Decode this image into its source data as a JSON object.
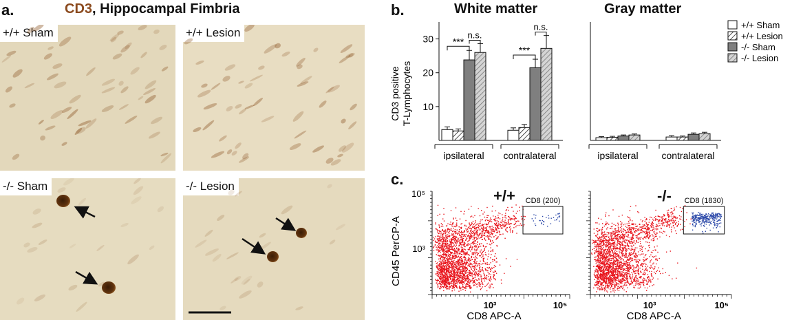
{
  "panel_a": {
    "letter": "a.",
    "title_marker": "CD3",
    "title_rest": ", Hippocampal Fimbria",
    "images": [
      {
        "label": "+/+ Sham"
      },
      {
        "label": "+/+ Lesion"
      },
      {
        "label": "-/- Sham"
      },
      {
        "label": "-/- Lesion"
      }
    ]
  },
  "panel_b": {
    "letter": "b."
  },
  "panel_c": {
    "letter": "c."
  },
  "colors": {
    "red_population": "#e8141c",
    "cd8_population": "#2a47a8",
    "cd3_stain": "#8b4a1e",
    "bar_dark": "#7f7f7f"
  },
  "chart_data": [
    {
      "type": "bar",
      "title": "White matter",
      "ylabel": "CD3 positive T-Lymphocytes",
      "ylim": [
        0,
        35
      ],
      "yticks": [
        "10",
        "20",
        "30"
      ],
      "groups": [
        "ipsilateral",
        "contralateral"
      ],
      "series": [
        {
          "name": "+/+ Sham",
          "values": [
            3.2,
            3.0
          ],
          "errors": [
            0.8,
            0.7
          ]
        },
        {
          "name": "+/+ Lesion",
          "values": [
            2.8,
            3.8
          ],
          "errors": [
            0.6,
            0.9
          ]
        },
        {
          "name": "-/- Sham",
          "values": [
            23.8,
            21.5
          ],
          "errors": [
            2.8,
            2.5
          ]
        },
        {
          "name": "-/- Lesion",
          "values": [
            26.0,
            27.2
          ],
          "errors": [
            2.6,
            3.8
          ]
        }
      ],
      "annotations": [
        "***",
        "n.s.",
        "***",
        "n.s."
      ]
    },
    {
      "type": "bar",
      "title": "Gray matter",
      "ylim": [
        0,
        35
      ],
      "groups": [
        "ipsilateral",
        "contralateral"
      ],
      "series": [
        {
          "name": "+/+ Sham",
          "values": [
            0.8,
            1.0
          ],
          "errors": [
            0.3,
            0.4
          ]
        },
        {
          "name": "+/+ Lesion",
          "values": [
            0.9,
            1.0
          ],
          "errors": [
            0.3,
            0.3
          ]
        },
        {
          "name": "-/- Sham",
          "values": [
            1.3,
            1.8
          ],
          "errors": [
            0.3,
            0.4
          ]
        },
        {
          "name": "-/- Lesion",
          "values": [
            1.6,
            2.0
          ],
          "errors": [
            0.3,
            0.4
          ]
        }
      ],
      "legend": [
        "+/+ Sham",
        "+/+ Lesion",
        "-/- Sham",
        "-/- Lesion"
      ],
      "legend_position": "top-right"
    },
    {
      "type": "scatter",
      "title": "+/+",
      "xlabel": "CD8 APC-A",
      "ylabel": "CD45 PerCP-A",
      "x_scale": "log",
      "y_scale": "log",
      "xticks": [
        "10³",
        "10⁵"
      ],
      "yticks": [
        "10⁵",
        "10³"
      ],
      "gate_label": "CD8 (200)",
      "gated_events": 200
    },
    {
      "type": "scatter",
      "title": "-/-",
      "xlabel": "CD8 APC-A",
      "x_scale": "log",
      "y_scale": "log",
      "xticks": [
        "10³",
        "10⁵"
      ],
      "gate_label": "CD8 (1830)",
      "gated_events": 1830
    }
  ]
}
